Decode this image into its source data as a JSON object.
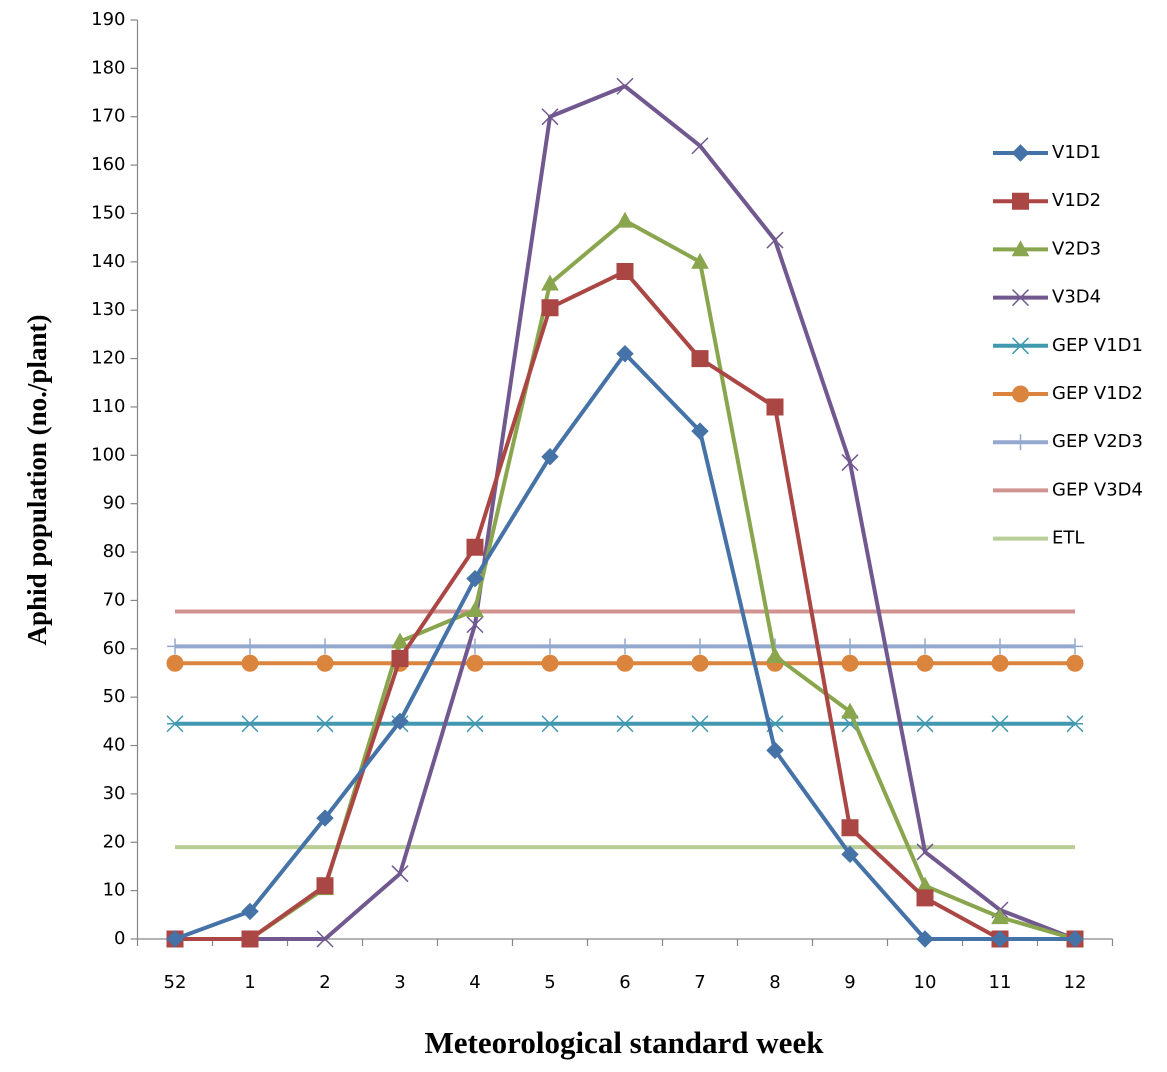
{
  "chart_data": {
    "type": "line",
    "x_label": "Meteorological standard week",
    "y_label": "Aphid population (no./plant)",
    "categories": [
      "52",
      "1",
      "2",
      "3",
      "4",
      "5",
      "6",
      "7",
      "8",
      "9",
      "10",
      "11",
      "12"
    ],
    "ylim": [
      0,
      190
    ],
    "yticks": [
      0,
      10,
      20,
      30,
      40,
      50,
      60,
      70,
      80,
      90,
      100,
      110,
      120,
      130,
      140,
      150,
      160,
      170,
      180,
      190
    ],
    "legend": "right",
    "series": [
      {
        "name": "V1D1",
        "color": "#4572a7",
        "marker": "diamond",
        "values": [
          0,
          5.7,
          25,
          45,
          74.5,
          99.7,
          121,
          105,
          39,
          17.5,
          0,
          0,
          0
        ]
      },
      {
        "name": "V1D2",
        "color": "#aa4643",
        "marker": "square",
        "values": [
          0,
          0,
          11,
          58,
          81,
          130.5,
          138,
          120,
          110,
          23,
          8.5,
          0,
          0
        ]
      },
      {
        "name": "V2D3",
        "color": "#89a54e",
        "marker": "triangle",
        "values": [
          0,
          0,
          10.5,
          61.5,
          68,
          135.5,
          148.5,
          140,
          58.5,
          47,
          11,
          4.5,
          0
        ]
      },
      {
        "name": "V3D4",
        "color": "#71588f",
        "marker": "x",
        "values": [
          0,
          0,
          0,
          13.5,
          65,
          170,
          176.3,
          164,
          144.5,
          98.5,
          18,
          6,
          0
        ]
      },
      {
        "name": "GEP V1D1",
        "color": "#4198af",
        "marker": "asterisk",
        "values": [
          44.5,
          44.5,
          44.5,
          44.5,
          44.5,
          44.5,
          44.5,
          44.5,
          44.5,
          44.5,
          44.5,
          44.5,
          44.5
        ]
      },
      {
        "name": "GEP V1D2",
        "color": "#db843d",
        "marker": "circle",
        "values": [
          57,
          57,
          57,
          57,
          57,
          57,
          57,
          57,
          57,
          57,
          57,
          57,
          57
        ]
      },
      {
        "name": "GEP V2D3",
        "color": "#93a9cf",
        "marker": "plus",
        "values": [
          60.5,
          60.5,
          60.5,
          60.5,
          60.5,
          60.5,
          60.5,
          60.5,
          60.5,
          60.5,
          60.5,
          60.5,
          60.5
        ]
      },
      {
        "name": "GEP V3D4",
        "color": "#d19392",
        "marker": "none",
        "values": [
          67.7,
          67.7,
          67.7,
          67.7,
          67.7,
          67.7,
          67.7,
          67.7,
          67.7,
          67.7,
          67.7,
          67.7,
          67.7
        ]
      },
      {
        "name": "ETL",
        "color": "#b9cd96",
        "marker": "none",
        "values": [
          19,
          19,
          19,
          19,
          19,
          19,
          19,
          19,
          19,
          19,
          19,
          19,
          19
        ]
      }
    ]
  }
}
